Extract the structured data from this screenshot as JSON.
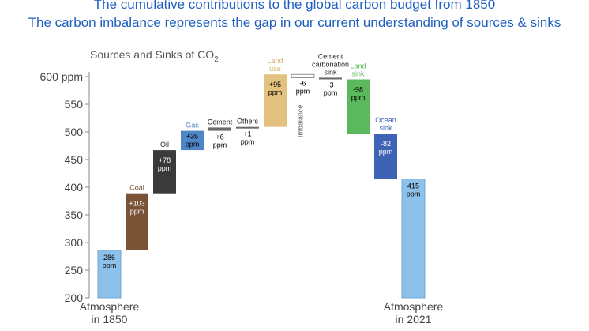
{
  "header": {
    "line1": "The cumulative contributions to the global carbon budget from 1850",
    "line2": "The carbon imbalance represents the gap in our current understanding of sources & sinks"
  },
  "chart_data": {
    "type": "bar",
    "subtype": "waterfall",
    "title": "Sources and Sinks of CO",
    "title_subscript": "2",
    "xlabel": "",
    "ylabel": "",
    "ylim": [
      200,
      610
    ],
    "yticks": [
      200,
      250,
      300,
      350,
      400,
      450,
      500,
      550,
      "600 ppm"
    ],
    "grid": false,
    "legend": "none",
    "bars": [
      {
        "key": "atm1850",
        "kind": "total",
        "label": "",
        "bottom_label": [
          "Atmosphere",
          "in 1850"
        ],
        "start": 200,
        "end": 286,
        "value_label": [
          "286",
          "ppm"
        ],
        "color": "#8ec1ea"
      },
      {
        "key": "coal",
        "kind": "delta",
        "label": "Coal",
        "start": 286,
        "end": 389,
        "value_label": [
          "+103",
          "ppm"
        ],
        "color": "#7a5236",
        "label_color": "#7a5236",
        "text_color": "#ffffff"
      },
      {
        "key": "oil",
        "kind": "delta",
        "label": "Oil",
        "start": 389,
        "end": 467,
        "value_label": [
          "+78",
          "ppm"
        ],
        "color": "#3a3a3a",
        "label_color": "#222222",
        "text_color": "#ffffff"
      },
      {
        "key": "gas",
        "kind": "delta",
        "label": "Gas",
        "start": 467,
        "end": 502,
        "value_label": [
          "+35",
          "ppm"
        ],
        "color": "#4f86c6",
        "label_color": "#4f86c6",
        "text_color": "#000000"
      },
      {
        "key": "cement",
        "kind": "delta",
        "label": "Cement",
        "start": 502,
        "end": 508,
        "value_label": [
          "+6",
          "ppm"
        ],
        "color": "#6b6b6b",
        "label_color": "#222222",
        "text_color": "#000000"
      },
      {
        "key": "others",
        "kind": "delta",
        "label": "Others",
        "start": 508,
        "end": 509,
        "value_label": [
          "+1",
          "ppm"
        ],
        "color": "#6b6b6b",
        "label_color": "#222222",
        "text_color": "#000000"
      },
      {
        "key": "landuse",
        "kind": "delta",
        "label": [
          "Land",
          "use"
        ],
        "start": 509,
        "end": 604,
        "value_label": [
          "+95",
          "ppm"
        ],
        "color": "#e3c27f",
        "label_color": "#d9b36a",
        "text_color": "#000000"
      },
      {
        "key": "imbalance",
        "kind": "delta",
        "label": "Imbalance",
        "start": 604,
        "end": 598,
        "value_label": [
          "-6",
          "ppm"
        ],
        "color": "#ffffff",
        "label_color": "#555555",
        "text_color": "#000000"
      },
      {
        "key": "cementsink",
        "kind": "delta",
        "label": [
          "Cement",
          "carbonation",
          "sink"
        ],
        "start": 598,
        "end": 595,
        "value_label": [
          "-3",
          "ppm"
        ],
        "color": "#6b6b6b",
        "label_color": "#222222",
        "text_color": "#000000"
      },
      {
        "key": "landsink",
        "kind": "delta",
        "label": [
          "Land",
          "sink"
        ],
        "start": 595,
        "end": 497,
        "value_label": [
          "-98",
          "ppm"
        ],
        "color": "#5cb85c",
        "label_color": "#5cb85c",
        "text_color": "#000000"
      },
      {
        "key": "oceansink",
        "kind": "delta",
        "label": [
          "Ocean",
          "sink"
        ],
        "start": 497,
        "end": 415,
        "value_label": [
          "-82",
          "ppm"
        ],
        "color": "#3e62b4",
        "label_color": "#3e62b4",
        "text_color": "#ffffff"
      },
      {
        "key": "atm2021",
        "kind": "total",
        "label": "",
        "bottom_label": [
          "Atmosphere",
          "in 2021"
        ],
        "start": 200,
        "end": 415,
        "value_label": [
          "415",
          "ppm"
        ],
        "color": "#8ec1ea"
      }
    ]
  }
}
